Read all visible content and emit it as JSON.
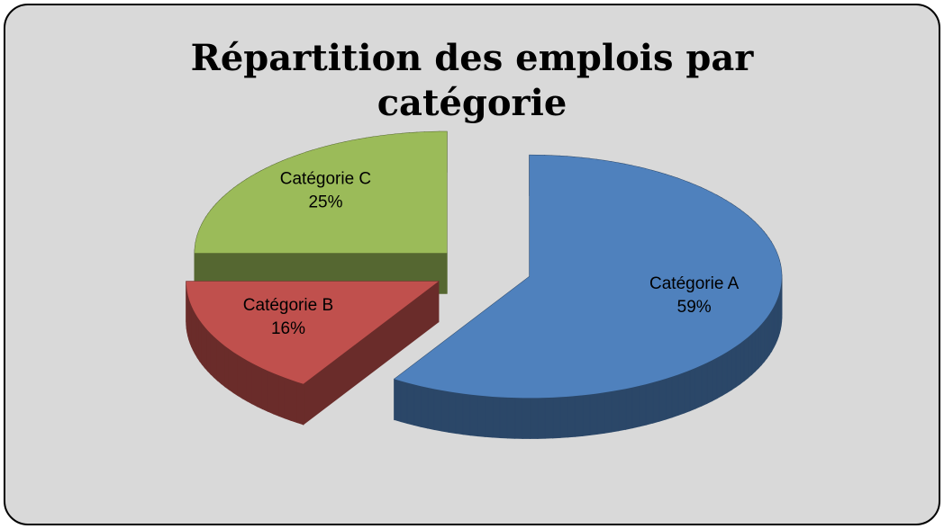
{
  "chart_data": {
    "type": "pie3d",
    "title": "Répartition des emplois par catégorie",
    "categories": [
      "Catégorie A",
      "Catégorie B",
      "Catégorie C"
    ],
    "values": [
      59,
      16,
      25
    ],
    "value_labels": [
      "59%",
      "16%",
      "25%"
    ],
    "colors": [
      "#4f81bd",
      "#c0504d",
      "#9bbb59"
    ]
  }
}
